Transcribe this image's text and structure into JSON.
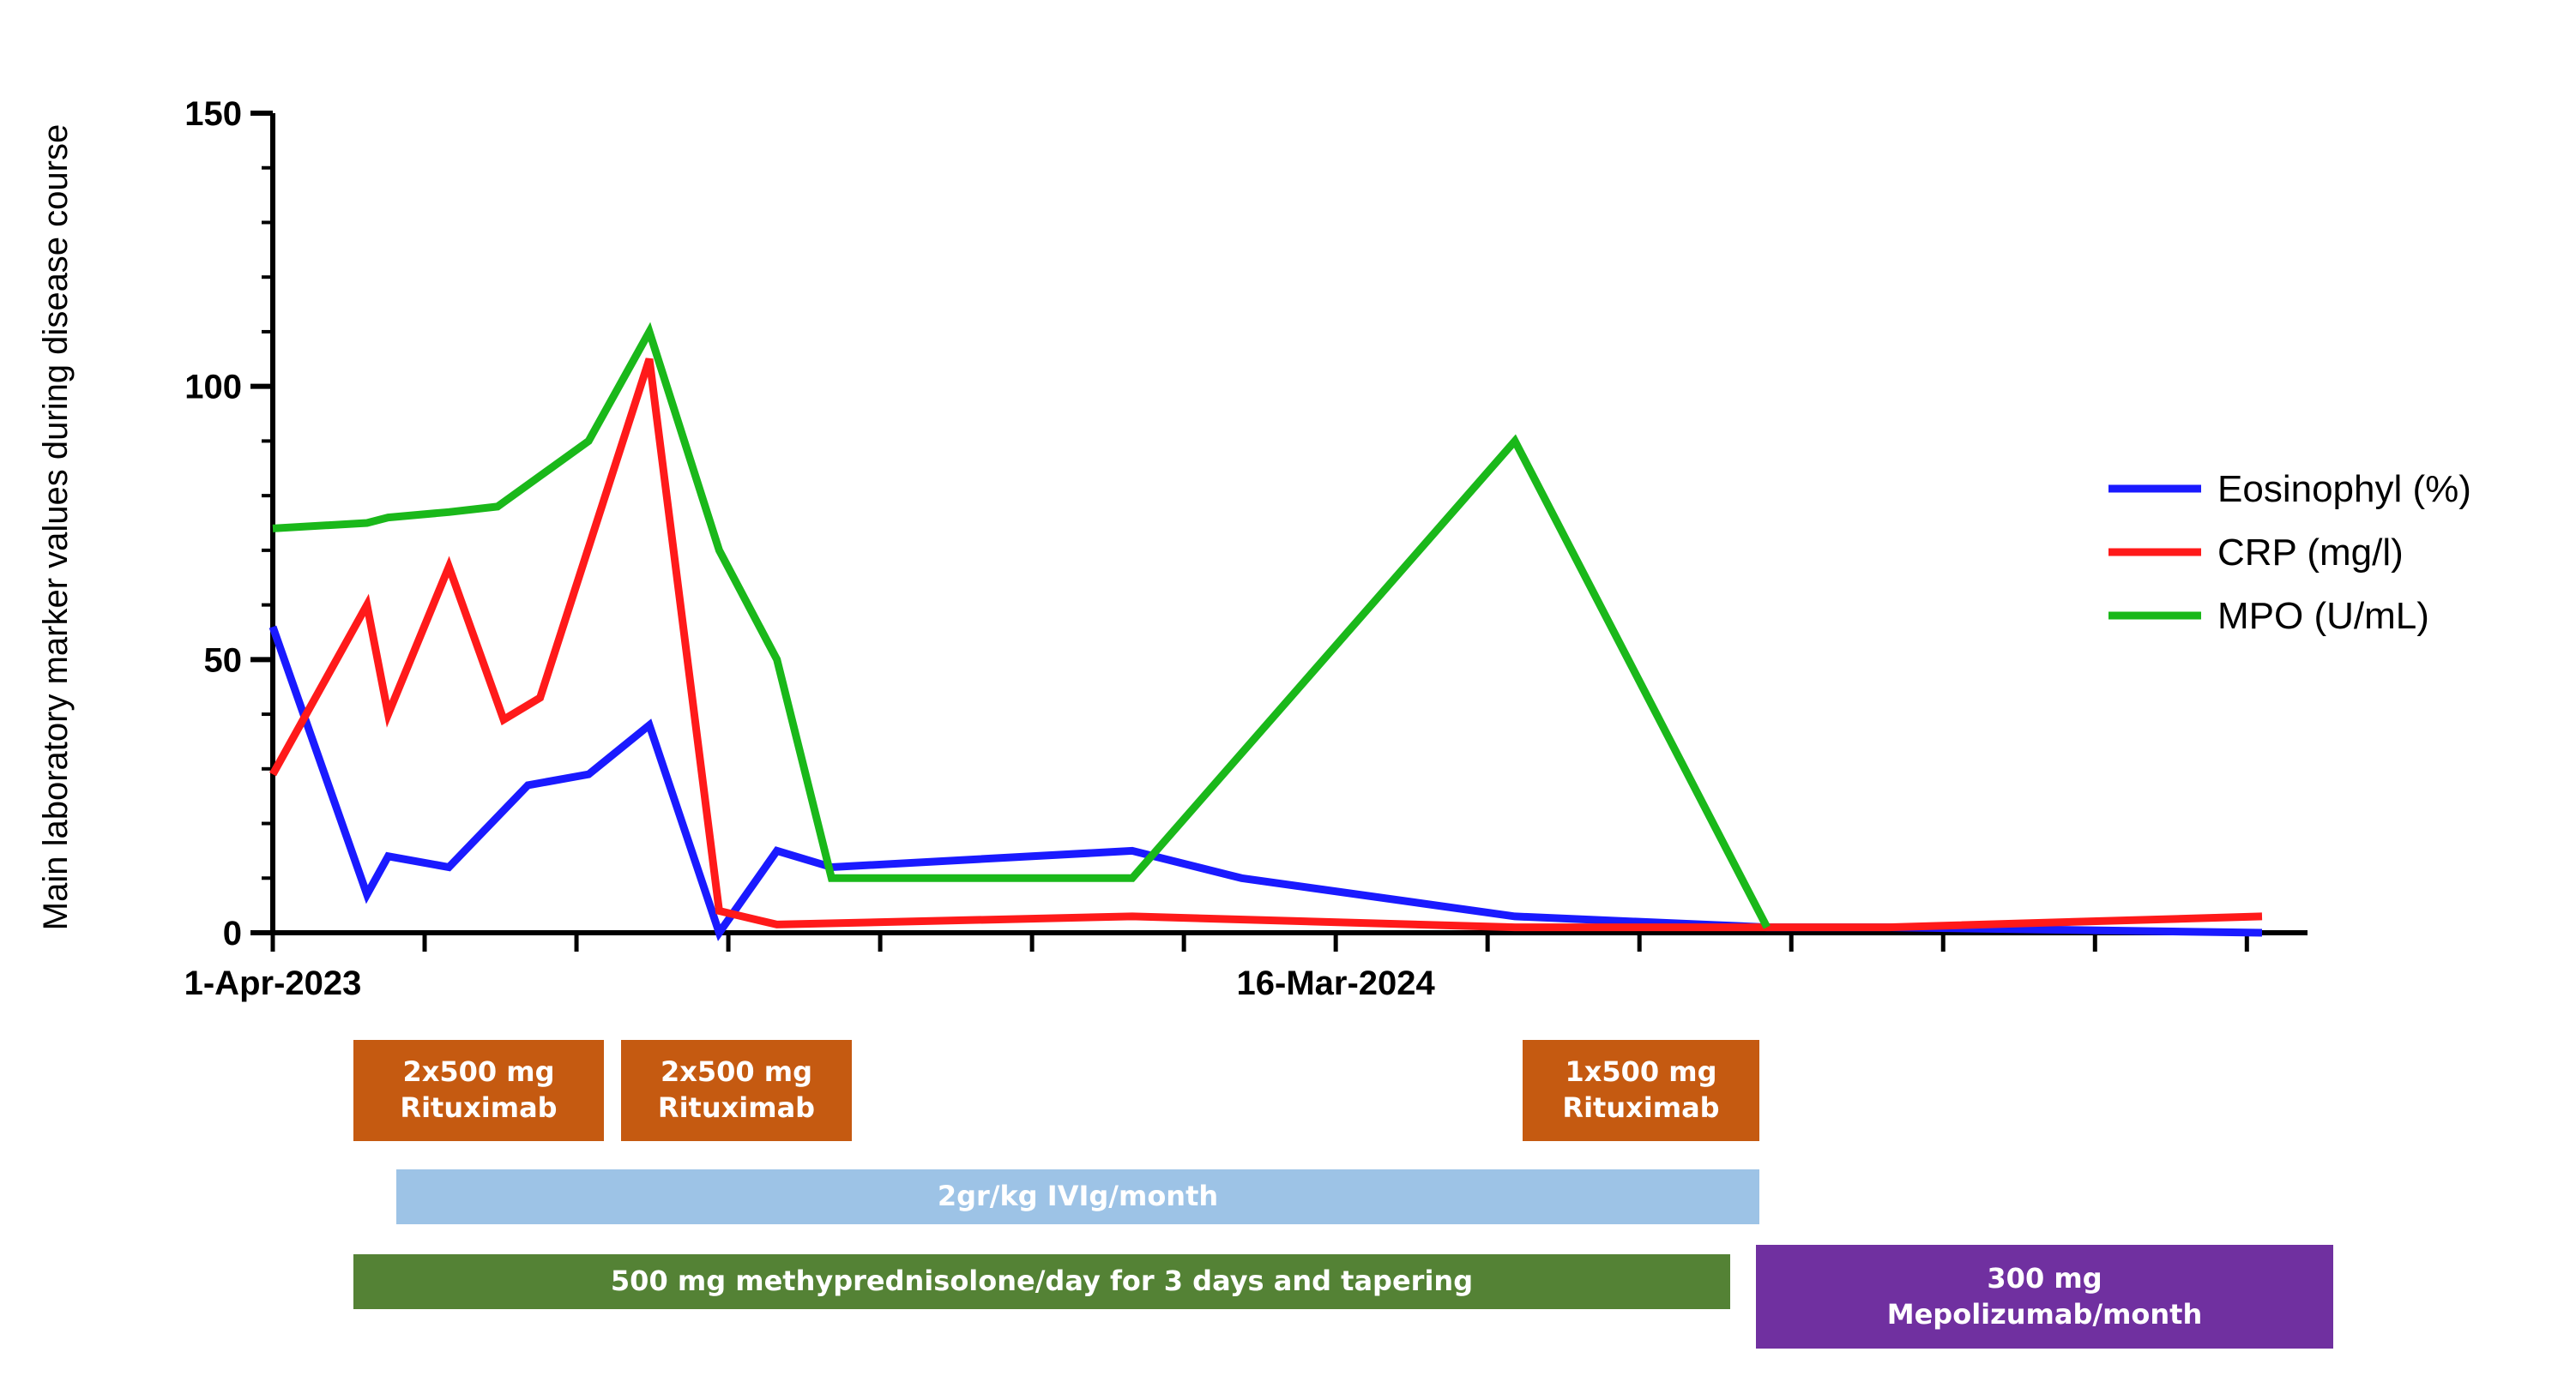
{
  "chart_data": {
    "type": "line",
    "title": "",
    "xlabel": "",
    "ylabel": "Main laboratory marker values during disease course",
    "ylim": [
      0,
      150
    ],
    "yticks": [
      "0",
      "50",
      "100",
      "150"
    ],
    "xlim": [
      "2023-04-01",
      "2025-01-15"
    ],
    "xtick_labels": [
      {
        "date": "2023-04-01",
        "label": "1-Apr-2023"
      },
      {
        "date": "2024-03-16",
        "label": "16-Mar-2024"
      }
    ],
    "grid": false,
    "legend_position": "right",
    "series": [
      {
        "name": "Eosinophyl (%)",
        "color": "#1a1aff",
        "points": [
          {
            "x": "2023-04-01",
            "y": 56
          },
          {
            "x": "2023-05-02",
            "y": 7
          },
          {
            "x": "2023-05-09",
            "y": 14
          },
          {
            "x": "2023-05-29",
            "y": 12
          },
          {
            "x": "2023-06-24",
            "y": 27
          },
          {
            "x": "2023-07-14",
            "y": 29
          },
          {
            "x": "2023-08-03",
            "y": 38
          },
          {
            "x": "2023-08-26",
            "y": 0
          },
          {
            "x": "2023-09-14",
            "y": 15
          },
          {
            "x": "2023-10-02",
            "y": 12
          },
          {
            "x": "2024-01-09",
            "y": 15
          },
          {
            "x": "2024-02-14",
            "y": 10
          },
          {
            "x": "2024-05-14",
            "y": 3
          },
          {
            "x": "2024-08-05",
            "y": 1
          },
          {
            "x": "2024-09-14",
            "y": 1
          },
          {
            "x": "2025-01-15",
            "y": 0
          }
        ]
      },
      {
        "name": "CRP (mg/l)",
        "color": "#ff1a1a",
        "points": [
          {
            "x": "2023-04-01",
            "y": 29
          },
          {
            "x": "2023-05-02",
            "y": 60
          },
          {
            "x": "2023-05-09",
            "y": 40
          },
          {
            "x": "2023-05-29",
            "y": 67
          },
          {
            "x": "2023-06-16",
            "y": 39
          },
          {
            "x": "2023-06-28",
            "y": 43
          },
          {
            "x": "2023-08-03",
            "y": 105
          },
          {
            "x": "2023-08-26",
            "y": 4
          },
          {
            "x": "2023-09-14",
            "y": 1.5
          },
          {
            "x": "2024-01-09",
            "y": 3
          },
          {
            "x": "2024-05-14",
            "y": 1
          },
          {
            "x": "2024-09-14",
            "y": 1
          },
          {
            "x": "2025-01-15",
            "y": 3
          }
        ]
      },
      {
        "name": "MPO (U/mL)",
        "color": "#1ab81a",
        "points": [
          {
            "x": "2023-04-01",
            "y": 74
          },
          {
            "x": "2023-05-02",
            "y": 75
          },
          {
            "x": "2023-05-09",
            "y": 76
          },
          {
            "x": "2023-05-29",
            "y": 77
          },
          {
            "x": "2023-06-14",
            "y": 78
          },
          {
            "x": "2023-07-14",
            "y": 90
          },
          {
            "x": "2023-08-03",
            "y": 110
          },
          {
            "x": "2023-08-26",
            "y": 70
          },
          {
            "x": "2023-09-14",
            "y": 50
          },
          {
            "x": "2023-10-02",
            "y": 10
          },
          {
            "x": "2024-01-09",
            "y": 10
          },
          {
            "x": "2024-05-14",
            "y": 90
          },
          {
            "x": "2024-08-05",
            "y": 1
          }
        ]
      }
    ]
  },
  "treatments": [
    {
      "id": "rituximab-1",
      "lines": [
        "2x500 mg",
        "Rituximab"
      ],
      "color": "#c55a11",
      "text_color": "#ffffff"
    },
    {
      "id": "rituximab-2",
      "lines": [
        "2x500 mg",
        "Rituximab"
      ],
      "color": "#c55a11",
      "text_color": "#ffffff"
    },
    {
      "id": "rituximab-3",
      "lines": [
        "1x500 mg",
        "Rituximab"
      ],
      "color": "#c55a11",
      "text_color": "#ffffff"
    },
    {
      "id": "ivig",
      "lines": [
        "2gr/kg IVIg/month"
      ],
      "color": "#9dc3e6",
      "text_color": "#ffffff"
    },
    {
      "id": "methylprednisolone",
      "lines": [
        "500 mg methyprednisolone/day for 3 days and tapering"
      ],
      "color": "#548235",
      "text_color": "#ffffff"
    },
    {
      "id": "mepolizumab",
      "lines": [
        "300 mg",
        "Mepolizumab/month"
      ],
      "color": "#7030a0",
      "text_color": "#ffffff"
    }
  ]
}
